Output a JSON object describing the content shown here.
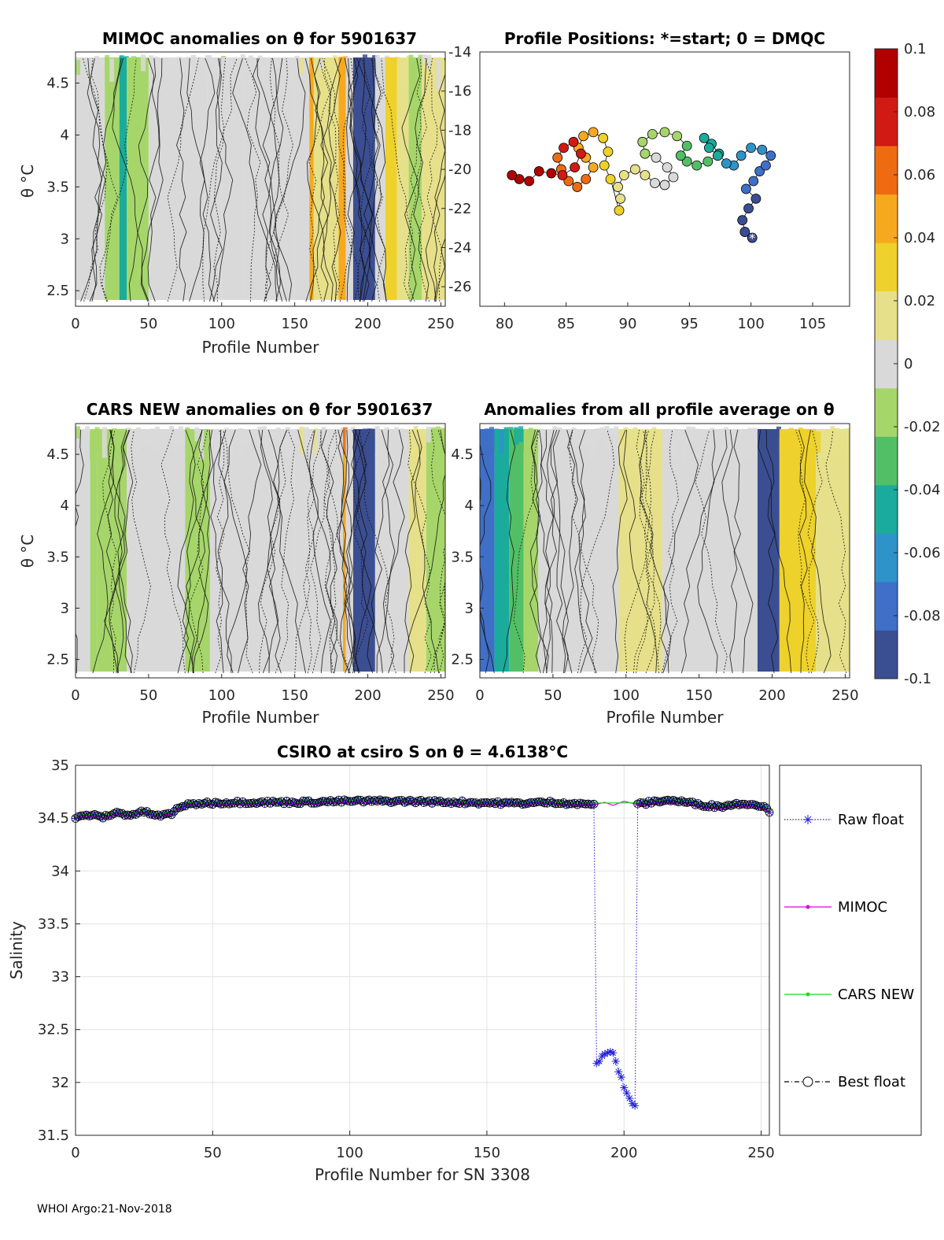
{
  "footer": "WHOI Argo:21-Nov-2018",
  "colors": {
    "raw": "#1f1fd6",
    "mimoc": "#e000e0",
    "cars": "#22d822",
    "best": "#000000",
    "colormap": [
      "#3b4e91",
      "#3f6fc6",
      "#2e93c9",
      "#1aab9c",
      "#52bf66",
      "#a6d66a",
      "#d9d9d9",
      "#e6e08a",
      "#eed12a",
      "#f6a91e",
      "#ef6b12",
      "#d11a14",
      "#b00000"
    ]
  },
  "colorbar": {
    "range": [
      -0.1,
      0.1
    ],
    "ticks": [
      0.1,
      0.08,
      0.06,
      0.04,
      0.02,
      0,
      -0.02,
      -0.04,
      -0.06,
      -0.08,
      -0.1
    ],
    "tick_labels": [
      "0.1",
      "0.08",
      "0.06",
      "0.04",
      "0.02",
      "0",
      "-0.02",
      "-0.04",
      "-0.06",
      "-0.08",
      "-0.1"
    ]
  },
  "chart_data": [
    {
      "id": "mimoc",
      "type": "heatmap",
      "title": "MIMOC anomalies on θ  for 5901637",
      "xlabel": "Profile Number",
      "ylabel": "θ °C",
      "xlim": [
        0,
        253
      ],
      "ylim": [
        2.35,
        4.8
      ],
      "xticks": [
        0,
        50,
        100,
        150,
        200,
        250
      ],
      "yticks": [
        2.5,
        3,
        3.5,
        4,
        4.5
      ],
      "bands": [
        {
          "x0": 0,
          "x1": 20,
          "v": -0.002
        },
        {
          "x0": 20,
          "x1": 30,
          "v": -0.012
        },
        {
          "x0": 30,
          "x1": 35,
          "v": -0.05
        },
        {
          "x0": 35,
          "x1": 50,
          "v": -0.01
        },
        {
          "x0": 50,
          "x1": 90,
          "v": 0.0
        },
        {
          "x0": 90,
          "x1": 100,
          "v": -0.002
        },
        {
          "x0": 100,
          "x1": 115,
          "v": 0.003
        },
        {
          "x0": 115,
          "x1": 150,
          "v": 0.0
        },
        {
          "x0": 150,
          "x1": 160,
          "v": 0.006
        },
        {
          "x0": 160,
          "x1": 163,
          "v": 0.05
        },
        {
          "x0": 163,
          "x1": 180,
          "v": 0.01
        },
        {
          "x0": 180,
          "x1": 185,
          "v": 0.045
        },
        {
          "x0": 185,
          "x1": 190,
          "v": 0.0
        },
        {
          "x0": 190,
          "x1": 205,
          "v": -0.1
        },
        {
          "x0": 205,
          "x1": 212,
          "v": 0.0
        },
        {
          "x0": 212,
          "x1": 220,
          "v": 0.035
        },
        {
          "x0": 220,
          "x1": 228,
          "v": 0.02
        },
        {
          "x0": 228,
          "x1": 237,
          "v": -0.015
        },
        {
          "x0": 237,
          "x1": 253,
          "v": 0.008
        }
      ],
      "right_axis": {
        "ylim": [
          -27,
          -14
        ],
        "ticks": [
          -14,
          -16,
          -18,
          -20,
          -22,
          -24,
          -26
        ]
      }
    },
    {
      "id": "positions",
      "type": "scatter",
      "title": "Profile Positions: *=start; 0 = DMQC",
      "xlim": [
        78,
        108
      ],
      "ylim": [
        -27,
        -14
      ],
      "xticks": [
        80,
        85,
        90,
        95,
        100,
        105
      ],
      "yticks": [
        -14,
        -16,
        -18,
        -20,
        -22,
        -24,
        -26
      ],
      "track": [
        [
          100.1,
          -23.5
        ],
        [
          99.5,
          -23.2
        ],
        [
          99.3,
          -22.6
        ],
        [
          99.8,
          -22.0
        ],
        [
          100.4,
          -21.5
        ],
        [
          99.6,
          -21.0
        ],
        [
          100.2,
          -20.6
        ],
        [
          100.7,
          -20.1
        ],
        [
          101.2,
          -19.8
        ],
        [
          101.6,
          -19.3
        ],
        [
          100.9,
          -19.0
        ],
        [
          100.0,
          -18.9
        ],
        [
          99.2,
          -19.3
        ],
        [
          98.6,
          -19.8
        ],
        [
          98.0,
          -19.7
        ],
        [
          97.4,
          -19.2
        ],
        [
          96.8,
          -18.7
        ],
        [
          96.2,
          -18.4
        ],
        [
          96.6,
          -18.9
        ],
        [
          97.3,
          -19.3
        ],
        [
          96.5,
          -19.6
        ],
        [
          95.6,
          -19.8
        ],
        [
          94.8,
          -19.6
        ],
        [
          94.3,
          -19.3
        ],
        [
          94.8,
          -18.8
        ],
        [
          94.0,
          -18.3
        ],
        [
          93.0,
          -18.1
        ],
        [
          92.0,
          -18.2
        ],
        [
          91.2,
          -18.6
        ],
        [
          91.4,
          -19.2
        ],
        [
          92.3,
          -19.4
        ],
        [
          93.2,
          -19.9
        ],
        [
          93.7,
          -20.4
        ],
        [
          93.0,
          -20.8
        ],
        [
          92.2,
          -20.7
        ],
        [
          91.4,
          -20.3
        ],
        [
          90.6,
          -20.0
        ],
        [
          89.7,
          -20.3
        ],
        [
          89.2,
          -20.9
        ],
        [
          89.4,
          -21.5
        ],
        [
          89.3,
          -22.1
        ],
        [
          88.6,
          -20.5
        ],
        [
          88.1,
          -19.8
        ],
        [
          88.4,
          -19.1
        ],
        [
          88.0,
          -18.4
        ],
        [
          87.2,
          -18.1
        ],
        [
          86.4,
          -18.3
        ],
        [
          86.0,
          -18.9
        ],
        [
          86.6,
          -19.4
        ],
        [
          87.2,
          -19.9
        ],
        [
          86.6,
          -20.5
        ],
        [
          85.9,
          -20.9
        ],
        [
          85.2,
          -20.6
        ],
        [
          84.6,
          -20.0
        ],
        [
          84.3,
          -19.4
        ],
        [
          84.8,
          -18.9
        ],
        [
          85.6,
          -18.6
        ],
        [
          86.2,
          -19.2
        ],
        [
          85.7,
          -19.9
        ],
        [
          84.7,
          -20.3
        ],
        [
          83.8,
          -20.2
        ],
        [
          82.8,
          -20.1
        ],
        [
          82.0,
          -20.6
        ],
        [
          81.2,
          -20.5
        ],
        [
          80.6,
          -20.3
        ]
      ],
      "start_marker": [
        100.1,
        -23.5
      ]
    },
    {
      "id": "cars",
      "type": "heatmap",
      "title": "CARS NEW anomalies on θ for 5901637",
      "xlabel": "Profile Number",
      "ylabel": "θ °C",
      "xlim": [
        0,
        253
      ],
      "ylim": [
        2.32,
        4.8
      ],
      "xticks": [
        0,
        50,
        100,
        150,
        200,
        250
      ],
      "yticks": [
        2.5,
        3,
        3.5,
        4,
        4.5
      ],
      "bands": [
        {
          "x0": 0,
          "x1": 10,
          "v": -0.004
        },
        {
          "x0": 10,
          "x1": 15,
          "v": -0.02
        },
        {
          "x0": 15,
          "x1": 25,
          "v": -0.008
        },
        {
          "x0": 25,
          "x1": 35,
          "v": -0.015
        },
        {
          "x0": 35,
          "x1": 75,
          "v": 0.0
        },
        {
          "x0": 75,
          "x1": 92,
          "v": -0.012
        },
        {
          "x0": 92,
          "x1": 150,
          "v": 0.0
        },
        {
          "x0": 150,
          "x1": 165,
          "v": 0.006
        },
        {
          "x0": 165,
          "x1": 183,
          "v": 0.002
        },
        {
          "x0": 183,
          "x1": 185,
          "v": 0.05
        },
        {
          "x0": 185,
          "x1": 190,
          "v": 0.0
        },
        {
          "x0": 190,
          "x1": 205,
          "v": -0.1
        },
        {
          "x0": 205,
          "x1": 228,
          "v": 0.0
        },
        {
          "x0": 228,
          "x1": 240,
          "v": 0.012
        },
        {
          "x0": 240,
          "x1": 253,
          "v": -0.012
        }
      ]
    },
    {
      "id": "allprof",
      "type": "heatmap",
      "title": "Anomalies from all profile average on θ",
      "xlabel": "Profile Number",
      "xlim": [
        0,
        253
      ],
      "ylim": [
        2.32,
        4.8
      ],
      "xticks": [
        0,
        50,
        100,
        150,
        200,
        250
      ],
      "yticks": [
        2.5,
        3,
        3.5,
        4,
        4.5
      ],
      "bands": [
        {
          "x0": 0,
          "x1": 10,
          "v": -0.075
        },
        {
          "x0": 10,
          "x1": 20,
          "v": -0.05
        },
        {
          "x0": 20,
          "x1": 30,
          "v": -0.035
        },
        {
          "x0": 30,
          "x1": 40,
          "v": -0.02
        },
        {
          "x0": 40,
          "x1": 95,
          "v": 0.0
        },
        {
          "x0": 95,
          "x1": 125,
          "v": 0.012
        },
        {
          "x0": 125,
          "x1": 190,
          "v": 0.002
        },
        {
          "x0": 190,
          "x1": 205,
          "v": -0.1
        },
        {
          "x0": 205,
          "x1": 230,
          "v": 0.03
        },
        {
          "x0": 230,
          "x1": 253,
          "v": 0.018
        }
      ]
    },
    {
      "id": "salinity",
      "type": "line",
      "title": "CSIRO at csiro S on θ = 4.6138°C",
      "xlabel": "Profile Number for SN 3308",
      "ylabel": "Salinity",
      "xlim": [
        0,
        253
      ],
      "ylim": [
        31.5,
        35
      ],
      "xticks": [
        0,
        50,
        100,
        150,
        200,
        250
      ],
      "yticks": [
        31.5,
        32,
        32.5,
        33,
        33.5,
        34,
        34.5,
        35
      ],
      "ytick_labels": [
        "31.5",
        "32",
        "32.5",
        "33",
        "33.5",
        "34",
        "34.5",
        "35"
      ],
      "baseline_x": [
        0,
        5,
        10,
        15,
        20,
        25,
        30,
        35,
        38,
        45,
        60,
        80,
        100,
        120,
        140,
        160,
        175,
        185,
        190
      ],
      "baseline_y": [
        34.5,
        34.53,
        34.51,
        34.55,
        34.53,
        34.56,
        34.52,
        34.54,
        34.61,
        34.64,
        34.65,
        34.65,
        34.66,
        34.66,
        34.65,
        34.64,
        34.65,
        34.63,
        34.64
      ],
      "raw_dip": {
        "x": [
          190,
          191,
          192,
          193,
          194,
          195,
          196,
          197,
          198,
          199,
          200,
          201,
          202,
          203,
          204
        ],
        "y": [
          32.18,
          32.2,
          32.25,
          32.27,
          32.28,
          32.29,
          32.28,
          32.2,
          32.1,
          32.05,
          31.95,
          31.9,
          31.85,
          31.8,
          31.78
        ]
      },
      "tail_x": [
        205,
        210,
        215,
        220,
        225,
        230,
        235,
        240,
        245,
        250,
        253
      ],
      "tail_y": [
        34.63,
        34.65,
        34.67,
        34.66,
        34.64,
        34.62,
        34.61,
        34.63,
        34.64,
        34.62,
        34.57
      ],
      "mimoc_gap": {
        "x": [
          190,
          193,
          196,
          200,
          203,
          206
        ],
        "y": [
          34.63,
          34.65,
          34.62,
          34.66,
          34.64,
          34.62
        ]
      },
      "series": [
        {
          "name": "Raw float",
          "key": "raw"
        },
        {
          "name": "MIMOC",
          "key": "mimoc"
        },
        {
          "name": "CARS NEW",
          "key": "cars"
        },
        {
          "name": "Best float",
          "key": "best"
        }
      ]
    }
  ]
}
